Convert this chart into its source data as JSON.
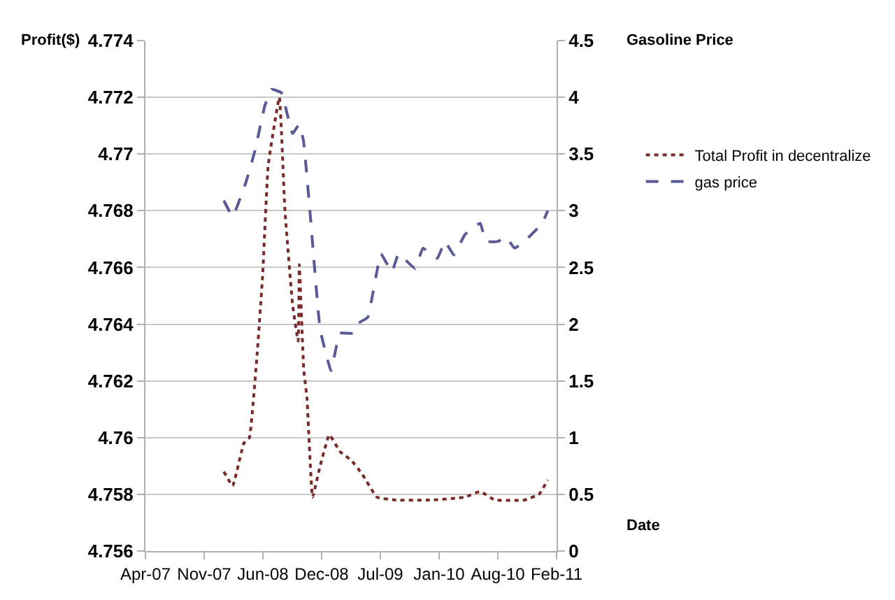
{
  "chart_data": {
    "type": "line",
    "xlabel": "Date",
    "ylabel": "Profit($)",
    "y2label": "Gasoline Price",
    "xlim": [
      "2007-04-28",
      "2011-02-26"
    ],
    "xticks": [
      {
        "value": "2007-04-28",
        "label": "Apr-07"
      },
      {
        "value": "2007-11-14",
        "label": "Nov-07"
      },
      {
        "value": "2008-06-01",
        "label": "Jun-08"
      },
      {
        "value": "2008-12-18",
        "label": "Dec-08"
      },
      {
        "value": "2009-07-06",
        "label": "Jul-09"
      },
      {
        "value": "2010-01-22",
        "label": "Jan-10"
      },
      {
        "value": "2010-08-10",
        "label": "Aug-10"
      },
      {
        "value": "2011-02-26",
        "label": "Feb-11"
      }
    ],
    "ylim": [
      4.756,
      4.774
    ],
    "yticks": [
      4.756,
      4.758,
      4.76,
      4.762,
      4.764,
      4.766,
      4.768,
      4.77,
      4.772,
      4.774
    ],
    "y2lim": [
      0,
      4.5
    ],
    "y2ticks": [
      0,
      0.5,
      1,
      1.5,
      2,
      2.5,
      3,
      3.5,
      4,
      4.5
    ],
    "grid": "y",
    "legend": "right",
    "marker": "none",
    "series": [
      {
        "name": "Total Profit in decentralize",
        "color": "#7b2a2a",
        "line_style": "dotted",
        "x": [
          "2008-01-20",
          "2008-02-19",
          "2008-03-28",
          "2008-04-16",
          "2008-05-12",
          "2008-05-31",
          "2008-06-19",
          "2008-07-27",
          "2008-08-15",
          "2008-09-10",
          "2008-09-29",
          "2008-10-03",
          "2008-10-18",
          "2008-10-29",
          "2008-11-17",
          "2008-12-13",
          "2009-01-13",
          "2009-02-19",
          "2009-03-29",
          "2009-05-06",
          "2009-06-24",
          "2009-08-27",
          "2009-12-30",
          "2010-04-20",
          "2010-06-11",
          "2010-07-30",
          "2010-11-09",
          "2010-12-28",
          "2011-01-27"
        ],
        "values": [
          4.7588,
          4.7583,
          4.7598,
          4.76,
          4.7629,
          4.7657,
          4.7696,
          4.772,
          4.768,
          4.7647,
          4.7634,
          4.7661,
          4.7624,
          4.7614,
          4.7579,
          4.759,
          4.7601,
          4.7595,
          4.7592,
          4.7587,
          4.7579,
          4.7578,
          4.7578,
          4.7579,
          4.7581,
          4.7578,
          4.7578,
          4.758,
          4.7585
        ]
      },
      {
        "name": "gas price",
        "color": "#5a5a96",
        "line_style": "dashed",
        "axis": "y2",
        "x": [
          "2008-01-20",
          "2008-02-19",
          "2008-04-04",
          "2008-05-05",
          "2008-06-07",
          "2008-06-30",
          "2008-08-03",
          "2008-09-10",
          "2008-10-02",
          "2008-10-17",
          "2008-11-09",
          "2008-12-13",
          "2009-01-19",
          "2009-02-18",
          "2009-04-05",
          "2009-04-23",
          "2009-05-24",
          "2009-07-08",
          "2009-08-14",
          "2009-09-06",
          "2009-11-01",
          "2009-11-28",
          "2010-01-16",
          "2010-02-11",
          "2010-03-13",
          "2010-04-20",
          "2010-06-11",
          "2010-06-30",
          "2010-08-11",
          "2010-09-06",
          "2010-10-06",
          "2010-11-09",
          "2011-01-08",
          "2011-01-27"
        ],
        "values": [
          3.09,
          2.95,
          3.25,
          3.53,
          3.92,
          4.07,
          4.04,
          3.68,
          3.76,
          3.62,
          2.97,
          1.95,
          1.59,
          1.92,
          1.92,
          2.01,
          2.06,
          2.62,
          2.46,
          2.62,
          2.49,
          2.67,
          2.58,
          2.73,
          2.61,
          2.79,
          2.89,
          2.73,
          2.73,
          2.77,
          2.67,
          2.73,
          2.89,
          3.0
        ]
      }
    ]
  }
}
